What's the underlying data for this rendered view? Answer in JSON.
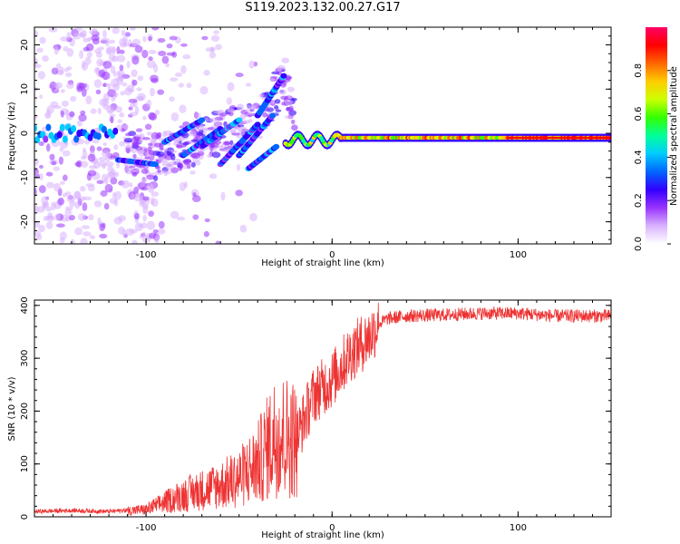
{
  "title": "S119.2023.132.00.27.G17",
  "chart_data": [
    {
      "type": "heatmap",
      "xlabel": "Height of straight line (km)",
      "ylabel": "Frequency (Hz)",
      "xlim": [
        -160,
        150
      ],
      "ylim": [
        -25,
        24
      ],
      "x_ticks": [
        -100,
        0,
        100
      ],
      "y_ticks": [
        -20,
        -10,
        0,
        10,
        20
      ],
      "colorbar": {
        "label": "Normalized spectral amplitude",
        "range": [
          0,
          1
        ],
        "ticks": [
          "0.0",
          "0.2",
          "0.4",
          "0.6",
          "0.8"
        ],
        "colormap": [
          "#ffffff",
          "#d9b3ff",
          "#9933ff",
          "#3300ff",
          "#0066ff",
          "#00ccff",
          "#00ff99",
          "#33ff00",
          "#ccff00",
          "#ffcc00",
          "#ff6600",
          "#ff0000",
          "#ff0066"
        ]
      },
      "ridge": [
        {
          "x": -160,
          "f": 0.5
        },
        {
          "x": -140,
          "f": 0.0
        },
        {
          "x": -120,
          "f": -1.0
        },
        {
          "x": -100,
          "f": -6.0
        },
        {
          "x": -80,
          "f": -3.0
        },
        {
          "x": -60,
          "f": 0.0
        },
        {
          "x": -40,
          "f": 3.0
        },
        {
          "x": -25,
          "f": 12.0
        },
        {
          "x": -20,
          "f": 1.0
        },
        {
          "x": 0,
          "f": -1.5
        },
        {
          "x": 50,
          "f": -1.0
        },
        {
          "x": 100,
          "f": -1.0
        },
        {
          "x": 150,
          "f": -1.0
        }
      ]
    },
    {
      "type": "line",
      "xlabel": "Height of straight line (km)",
      "ylabel": "SNR (10 * v/v)",
      "xlim": [
        -160,
        150
      ],
      "ylim": [
        0,
        410
      ],
      "x_ticks": [
        -100,
        0,
        100
      ],
      "y_ticks": [
        0,
        100,
        200,
        300,
        400
      ],
      "color": "#ee3333",
      "series": [
        {
          "x": [
            -160,
            -140,
            -120,
            -100,
            -90,
            -80,
            -70,
            -60,
            -50,
            -40,
            -30,
            -20,
            -19,
            -10,
            0,
            10,
            20,
            25,
            30,
            40,
            60,
            80,
            100,
            120,
            150
          ],
          "y": [
            10,
            12,
            10,
            15,
            30,
            45,
            55,
            65,
            80,
            110,
            170,
            160,
            150,
            230,
            260,
            310,
            340,
            365,
            375,
            380,
            382,
            385,
            385,
            380,
            380
          ]
        }
      ]
    }
  ]
}
